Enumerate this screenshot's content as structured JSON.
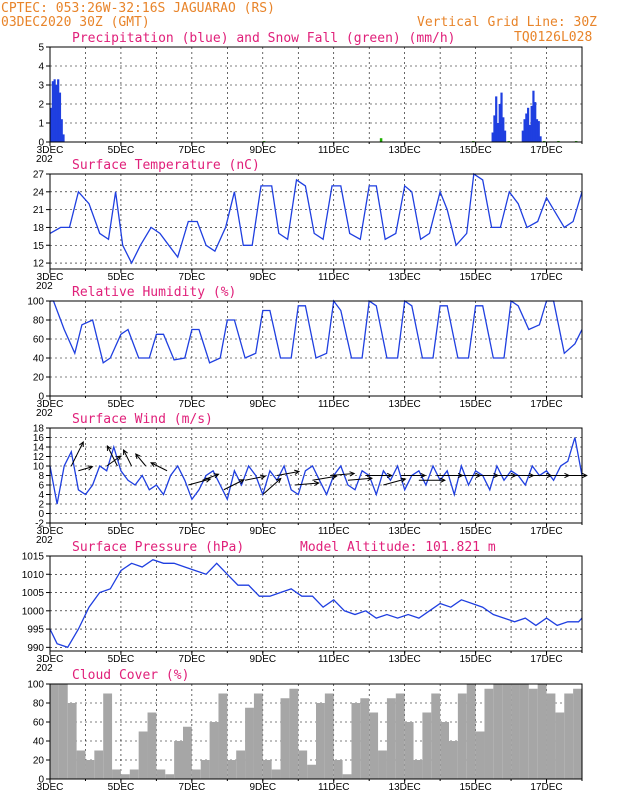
{
  "header": {
    "line1": "CPTEC:  053:26W-32:16S  JAGUARAO (RS)",
    "line2": "03DEC2020 30Z (GMT)",
    "vertical_grid": "Vertical Grid Line: 30Z",
    "code": "TQ0126L028"
  },
  "colors": {
    "header": "#e8842a",
    "title": "#e0207a",
    "line": "#1f3fe0",
    "snow": "#1fb000",
    "cloud": "#a6a6a6",
    "grid": "#000000"
  },
  "x_axis": {
    "start_day": 3,
    "end_day": 18,
    "ticks": [
      {
        "day": 3,
        "label": "3DEC"
      },
      {
        "day": 5,
        "label": "5DEC"
      },
      {
        "day": 7,
        "label": "7DEC"
      },
      {
        "day": 9,
        "label": "9DEC"
      },
      {
        "day": 11,
        "label": "11DEC"
      },
      {
        "day": 13,
        "label": "13DEC"
      },
      {
        "day": 15,
        "label": "15DEC"
      },
      {
        "day": 17,
        "label": "17DEC"
      }
    ],
    "year_fragment": "202"
  },
  "chart_data": [
    {
      "id": "precip",
      "type": "bar",
      "title": "Precipitation (blue) and Snow Fall (green) (mm/h)",
      "ylim": [
        0,
        5
      ],
      "yticks": [
        0,
        1,
        2,
        3,
        4,
        5
      ],
      "series": [
        {
          "name": "Precipitation",
          "color": "#1f3fe0",
          "x": [
            3.0,
            3.05,
            3.1,
            3.15,
            3.2,
            3.25,
            3.3,
            3.35,
            15.45,
            15.5,
            15.55,
            15.6,
            15.65,
            15.7,
            15.75,
            15.8,
            16.3,
            16.35,
            16.4,
            16.45,
            16.5,
            16.55,
            16.6,
            16.65,
            16.7,
            16.75,
            16.8
          ],
          "values": [
            1.8,
            3.2,
            3.3,
            3.0,
            3.3,
            2.6,
            1.2,
            0.4,
            0.5,
            1.4,
            2.4,
            1.0,
            2.0,
            2.6,
            1.3,
            0.6,
            0.6,
            1.2,
            1.5,
            1.8,
            0.9,
            1.9,
            2.7,
            2.1,
            1.2,
            1.1,
            0.3
          ]
        },
        {
          "name": "Snow Fall",
          "color": "#1fb000",
          "x": [
            9.0,
            12.3,
            14.9,
            15.9,
            16.9,
            17.3,
            17.8
          ],
          "values": [
            0.05,
            0.2,
            0.05,
            0.05,
            0.05,
            0.05,
            0.05
          ]
        }
      ]
    },
    {
      "id": "temp",
      "type": "line",
      "title": "Surface Temperature (nC)",
      "ylim": [
        11,
        27
      ],
      "yticks": [
        12,
        15,
        18,
        21,
        24,
        27
      ],
      "series": [
        {
          "name": "",
          "color": "#1f3fe0",
          "x": [
            3.0,
            3.3,
            3.55,
            3.8,
            4.1,
            4.4,
            4.65,
            4.85,
            5.05,
            5.3,
            5.55,
            5.85,
            6.1,
            6.35,
            6.6,
            6.9,
            7.15,
            7.4,
            7.65,
            7.95,
            8.2,
            8.45,
            8.7,
            8.95,
            9.25,
            9.45,
            9.7,
            9.95,
            10.2,
            10.45,
            10.7,
            10.95,
            11.2,
            11.45,
            11.75,
            12.0,
            12.2,
            12.45,
            12.75,
            13.0,
            13.2,
            13.45,
            13.7,
            14.0,
            14.2,
            14.45,
            14.75,
            14.95,
            15.2,
            15.45,
            15.7,
            15.95,
            16.2,
            16.45,
            16.75,
            17.0,
            17.2,
            17.5,
            17.75,
            18.0
          ],
          "values": [
            17,
            18,
            18,
            24,
            22,
            17,
            16,
            24,
            15,
            12,
            15,
            18,
            17,
            15,
            13,
            19,
            19,
            15,
            14,
            18,
            24,
            15,
            15,
            25,
            25,
            17,
            16,
            26,
            25,
            17,
            16,
            25,
            25,
            17,
            16,
            25,
            25,
            16,
            17,
            25,
            24,
            16,
            17,
            24,
            21,
            15,
            17,
            27,
            26,
            18,
            18,
            24,
            22,
            18,
            19,
            23,
            21,
            18,
            19,
            24
          ]
        }
      ]
    },
    {
      "id": "rh",
      "type": "line",
      "title": "Relative Humidity (%)",
      "ylim": [
        0,
        100
      ],
      "yticks": [
        0,
        20,
        40,
        60,
        80,
        100
      ],
      "series": [
        {
          "name": "",
          "color": "#1f3fe0",
          "x": [
            3.0,
            3.1,
            3.4,
            3.7,
            3.9,
            4.2,
            4.5,
            4.7,
            5.0,
            5.2,
            5.5,
            5.8,
            6.0,
            6.2,
            6.5,
            6.8,
            7.0,
            7.2,
            7.5,
            7.8,
            8.0,
            8.2,
            8.5,
            8.8,
            9.0,
            9.2,
            9.5,
            9.8,
            10.0,
            10.2,
            10.5,
            10.8,
            11.0,
            11.2,
            11.5,
            11.8,
            12.0,
            12.2,
            12.5,
            12.8,
            13.0,
            13.2,
            13.5,
            13.8,
            14.0,
            14.2,
            14.5,
            14.8,
            15.0,
            15.2,
            15.5,
            15.8,
            16.0,
            16.2,
            16.5,
            16.8,
            17.0,
            17.2,
            17.5,
            17.8,
            18.0
          ],
          "values": [
            100,
            100,
            70,
            45,
            75,
            80,
            35,
            40,
            65,
            70,
            40,
            40,
            65,
            65,
            38,
            40,
            70,
            70,
            35,
            40,
            80,
            80,
            40,
            45,
            90,
            90,
            40,
            40,
            95,
            95,
            40,
            45,
            100,
            90,
            40,
            40,
            100,
            95,
            40,
            40,
            100,
            95,
            40,
            40,
            95,
            95,
            40,
            40,
            95,
            95,
            40,
            40,
            100,
            95,
            70,
            75,
            100,
            100,
            45,
            55,
            70
          ]
        }
      ]
    },
    {
      "id": "wind",
      "type": "line",
      "title": "Surface Wind (m/s)",
      "ylim": [
        -2,
        18
      ],
      "yticks": [
        -2,
        0,
        2,
        4,
        6,
        8,
        10,
        12,
        14,
        16,
        18
      ],
      "series": [
        {
          "name": "",
          "color": "#1f3fe0",
          "x": [
            3.0,
            3.2,
            3.4,
            3.6,
            3.8,
            4.0,
            4.2,
            4.4,
            4.6,
            4.8,
            5.0,
            5.2,
            5.4,
            5.6,
            5.8,
            6.0,
            6.2,
            6.4,
            6.6,
            6.8,
            7.0,
            7.2,
            7.4,
            7.6,
            7.8,
            8.0,
            8.2,
            8.4,
            8.6,
            8.8,
            9.0,
            9.2,
            9.4,
            9.6,
            9.8,
            10.0,
            10.2,
            10.4,
            10.6,
            10.8,
            11.0,
            11.2,
            11.4,
            11.6,
            11.8,
            12.0,
            12.2,
            12.4,
            12.6,
            12.8,
            13.0,
            13.2,
            13.4,
            13.6,
            13.8,
            14.0,
            14.2,
            14.4,
            14.6,
            14.8,
            15.0,
            15.2,
            15.4,
            15.6,
            15.8,
            16.0,
            16.2,
            16.4,
            16.6,
            16.8,
            17.0,
            17.2,
            17.4,
            17.6,
            17.8,
            18.0
          ],
          "values": [
            10,
            2,
            10,
            13,
            5,
            4,
            6,
            10,
            9,
            14,
            9,
            7,
            6,
            8,
            5,
            6,
            4,
            8,
            10,
            7,
            3,
            5,
            8,
            9,
            6,
            3,
            9,
            6,
            10,
            8,
            4,
            9,
            7,
            10,
            5,
            4,
            9,
            10,
            7,
            4,
            8,
            10,
            6,
            5,
            9,
            8,
            4,
            9,
            7,
            10,
            5,
            8,
            9,
            6,
            10,
            7,
            9,
            4,
            10,
            6,
            9,
            8,
            5,
            10,
            7,
            9,
            8,
            6,
            10,
            8,
            9,
            7,
            10,
            11,
            16,
            8
          ]
        }
      ],
      "arrows": [
        {
          "x": 3.6,
          "y": 10,
          "dx": 12,
          "dy": -24
        },
        {
          "x": 3.8,
          "y": 9,
          "dx": 14,
          "dy": -4
        },
        {
          "x": 4.6,
          "y": 10,
          "dx": 14,
          "dy": -10
        },
        {
          "x": 4.9,
          "y": 10,
          "dx": -10,
          "dy": -20
        },
        {
          "x": 5.3,
          "y": 10,
          "dx": -8,
          "dy": -16
        },
        {
          "x": 5.7,
          "y": 10,
          "dx": -10,
          "dy": -12
        },
        {
          "x": 6.3,
          "y": 9,
          "dx": -16,
          "dy": -8
        },
        {
          "x": 6.9,
          "y": 6,
          "dx": 22,
          "dy": -6
        },
        {
          "x": 7.3,
          "y": 7,
          "dx": 16,
          "dy": -6
        },
        {
          "x": 7.9,
          "y": 5,
          "dx": 20,
          "dy": -10
        },
        {
          "x": 8.5,
          "y": 7,
          "dx": 20,
          "dy": -4
        },
        {
          "x": 9.0,
          "y": 4,
          "dx": 18,
          "dy": -16
        },
        {
          "x": 9.4,
          "y": 8,
          "dx": 22,
          "dy": -4
        },
        {
          "x": 9.9,
          "y": 6,
          "dx": 24,
          "dy": -2
        },
        {
          "x": 10.4,
          "y": 7,
          "dx": 24,
          "dy": -4
        },
        {
          "x": 10.9,
          "y": 8,
          "dx": 24,
          "dy": -2
        },
        {
          "x": 11.4,
          "y": 7,
          "dx": 24,
          "dy": -2
        },
        {
          "x": 11.9,
          "y": 8,
          "dx": 26,
          "dy": 0
        },
        {
          "x": 12.4,
          "y": 6,
          "dx": 22,
          "dy": -6
        },
        {
          "x": 12.9,
          "y": 8,
          "dx": 24,
          "dy": 0
        },
        {
          "x": 13.4,
          "y": 7,
          "dx": 26,
          "dy": 0
        },
        {
          "x": 13.9,
          "y": 8,
          "dx": 26,
          "dy": 0
        },
        {
          "x": 14.4,
          "y": 8,
          "dx": 26,
          "dy": 0
        },
        {
          "x": 14.9,
          "y": 8,
          "dx": 26,
          "dy": 0
        },
        {
          "x": 15.4,
          "y": 8,
          "dx": 26,
          "dy": 0
        },
        {
          "x": 15.9,
          "y": 8,
          "dx": 26,
          "dy": 0
        },
        {
          "x": 16.4,
          "y": 8,
          "dx": 26,
          "dy": 0
        },
        {
          "x": 16.9,
          "y": 8,
          "dx": 26,
          "dy": 0
        },
        {
          "x": 17.4,
          "y": 8,
          "dx": 26,
          "dy": 0
        }
      ]
    },
    {
      "id": "pressure",
      "type": "line",
      "title": "Surface Pressure (hPa)",
      "annotation": "Model Altitude: 101.821 m",
      "ylim": [
        989,
        1015
      ],
      "yticks": [
        990,
        995,
        1000,
        1005,
        1010,
        1015
      ],
      "series": [
        {
          "name": "",
          "color": "#1f3fe0",
          "x": [
            3.0,
            3.2,
            3.5,
            3.8,
            4.1,
            4.4,
            4.7,
            5.0,
            5.3,
            5.6,
            5.9,
            6.2,
            6.5,
            6.8,
            7.1,
            7.4,
            7.7,
            8.0,
            8.3,
            8.6,
            8.9,
            9.2,
            9.5,
            9.8,
            10.1,
            10.4,
            10.7,
            11.0,
            11.3,
            11.6,
            11.9,
            12.2,
            12.5,
            12.8,
            13.1,
            13.4,
            13.7,
            14.0,
            14.3,
            14.6,
            14.9,
            15.2,
            15.5,
            15.8,
            16.1,
            16.4,
            16.7,
            17.0,
            17.3,
            17.6,
            17.9,
            18.0
          ],
          "values": [
            995,
            991,
            990,
            995,
            1001,
            1005,
            1006,
            1011,
            1013,
            1012,
            1014,
            1013,
            1013,
            1012,
            1011,
            1010,
            1013,
            1010,
            1007,
            1007,
            1004,
            1004,
            1005,
            1006,
            1004,
            1004,
            1001,
            1003,
            1000,
            999,
            1000,
            998,
            999,
            998,
            999,
            998,
            1000,
            1002,
            1001,
            1003,
            1002,
            1001,
            999,
            998,
            997,
            998,
            996,
            998,
            996,
            997,
            997,
            998
          ]
        }
      ]
    },
    {
      "id": "cloud",
      "type": "bar",
      "title": "Cloud Cover (%)",
      "ylim": [
        0,
        100
      ],
      "yticks": [
        0,
        20,
        40,
        60,
        80,
        100
      ],
      "series": [
        {
          "name": "",
          "color": "#a6a6a6",
          "x": [
            3.0,
            3.25,
            3.5,
            3.75,
            4.0,
            4.25,
            4.5,
            4.75,
            5.0,
            5.25,
            5.5,
            5.75,
            6.0,
            6.25,
            6.5,
            6.75,
            7.0,
            7.25,
            7.5,
            7.75,
            8.0,
            8.25,
            8.5,
            8.75,
            9.0,
            9.25,
            9.5,
            9.75,
            10.0,
            10.25,
            10.5,
            10.75,
            11.0,
            11.25,
            11.5,
            11.75,
            12.0,
            12.25,
            12.5,
            12.75,
            13.0,
            13.25,
            13.5,
            13.75,
            14.0,
            14.25,
            14.5,
            14.75,
            15.0,
            15.25,
            15.5,
            15.75,
            16.0,
            16.25,
            16.5,
            16.75,
            17.0,
            17.25,
            17.5,
            17.75
          ],
          "values": [
            100,
            100,
            80,
            30,
            20,
            30,
            90,
            10,
            5,
            10,
            50,
            70,
            10,
            5,
            40,
            55,
            10,
            20,
            60,
            90,
            20,
            30,
            75,
            90,
            20,
            10,
            85,
            95,
            30,
            15,
            80,
            90,
            20,
            5,
            80,
            85,
            70,
            30,
            85,
            90,
            60,
            20,
            70,
            90,
            60,
            40,
            90,
            100,
            50,
            95,
            100,
            100,
            100,
            100,
            95,
            100,
            90,
            70,
            90,
            95
          ]
        }
      ]
    }
  ]
}
